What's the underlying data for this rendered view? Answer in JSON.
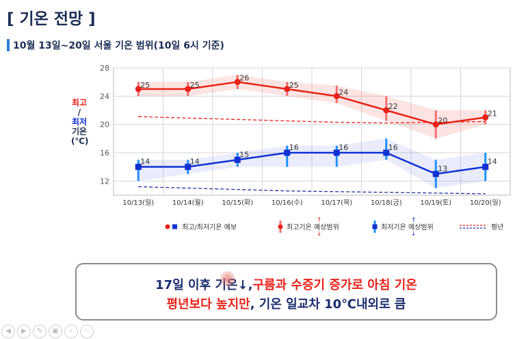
{
  "header": {
    "title": "[ 기온 전망 ]",
    "subtitle": "10월 13일~20일 서울 기온 범위(10일 6시 기준)"
  },
  "y_label": {
    "max": "최고",
    "slash": "/",
    "min": "최저",
    "temp": "기온",
    "unit": "(℃)"
  },
  "legend": {
    "forecast": "최고/최저기온 예보",
    "max_range": "최고기온 예상범위",
    "min_range": "최저기온 예상범위",
    "normal": "평년"
  },
  "colors": {
    "max": "#e8221a",
    "min": "#1030d0",
    "max_range": "#f07070",
    "min_range": "#1e90ff",
    "navy": "#1c2e55"
  },
  "chart_data": {
    "type": "line",
    "categories": [
      "10/13(일)",
      "10/14(월)",
      "10/15(화)",
      "10/16(수)",
      "10/17(목)",
      "10/18(금)",
      "10/19(토)",
      "10/20(일)"
    ],
    "ylim": [
      10,
      28
    ],
    "yticks": [
      12,
      16,
      20,
      24,
      28
    ],
    "grid": true,
    "series": [
      {
        "name": "최고기온",
        "values": [
          25,
          25,
          26,
          25,
          24,
          22,
          20,
          21
        ],
        "range_low": [
          24,
          24,
          25,
          24,
          23,
          20.5,
          18,
          20
        ],
        "range_high": [
          26,
          26,
          27,
          26,
          25.5,
          24,
          22,
          22
        ]
      },
      {
        "name": "최저기온",
        "values": [
          14,
          14,
          15,
          16,
          16,
          16,
          13,
          14
        ],
        "range_low": [
          12,
          13,
          14,
          14,
          14,
          15,
          11,
          12
        ],
        "range_high": [
          15,
          15,
          16,
          17,
          17,
          18,
          15,
          16
        ]
      },
      {
        "name": "평년 최고",
        "values": [
          21.1,
          20.9,
          20.7,
          20.5,
          20.3,
          20.2,
          20.3,
          20.4
        ]
      },
      {
        "name": "평년 최저",
        "values": [
          11.2,
          11.0,
          10.8,
          10.6,
          10.5,
          10.4,
          10.3,
          10.2
        ]
      }
    ]
  },
  "note": {
    "l1a": "17일 이후 기온↓,",
    "l1b": "구름과 수증기 증가로 아침 기온",
    "l2a": "평년보다 높지만",
    "l2b": ", 기온 일교차 10℃내외로 큼"
  },
  "toolbar": {
    "icons": [
      "play-icon",
      "back-icon",
      "pen-icon",
      "copy-icon",
      "zoom-icon",
      "more-icon"
    ]
  }
}
